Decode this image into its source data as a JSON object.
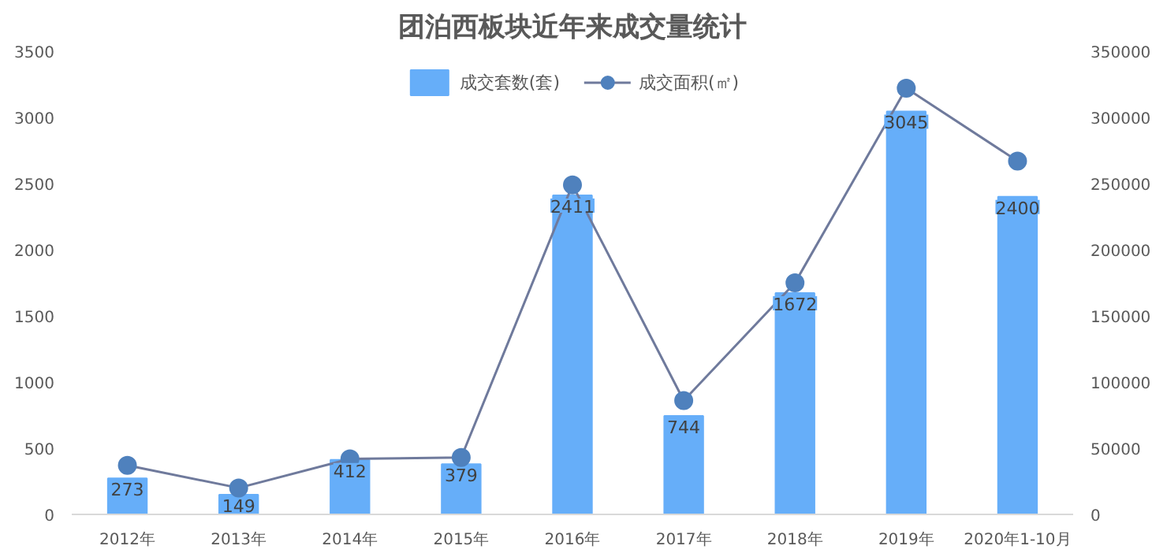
{
  "chart_data": {
    "type": "bar",
    "title": "团泊西板块近年来成交量统计",
    "categories": [
      "2012年",
      "2013年",
      "2014年",
      "2015年",
      "2016年",
      "2017年",
      "2018年",
      "2019年",
      "2020年1-10月"
    ],
    "series": [
      {
        "name": "成交套数(套)",
        "color": "#66aef9",
        "values": [
          273,
          149,
          412,
          379,
          2411,
          744,
          1672,
          3045,
          2400
        ],
        "value_labels": [
          "273",
          "149",
          "412",
          "379",
          "2411",
          "744",
          "1672",
          "3045",
          "2400"
        ]
      },
      {
        "name": "成交面积(㎡)",
        "type": "line",
        "axis": "y2",
        "color": "#4f81bd",
        "values": [
          37000,
          20000,
          42000,
          43000,
          249000,
          86000,
          175000,
          322000,
          267000
        ]
      }
    ],
    "ylim": [
      0,
      3500
    ],
    "yticks": [
      0,
      500,
      1000,
      1500,
      2000,
      2500,
      3000,
      3500
    ],
    "y2lim": [
      0,
      350000
    ],
    "y2ticks": [
      0,
      50000,
      100000,
      150000,
      200000,
      250000,
      300000,
      350000
    ],
    "grid": false,
    "legend": "top",
    "marker": "circle",
    "line_style": "solid"
  }
}
